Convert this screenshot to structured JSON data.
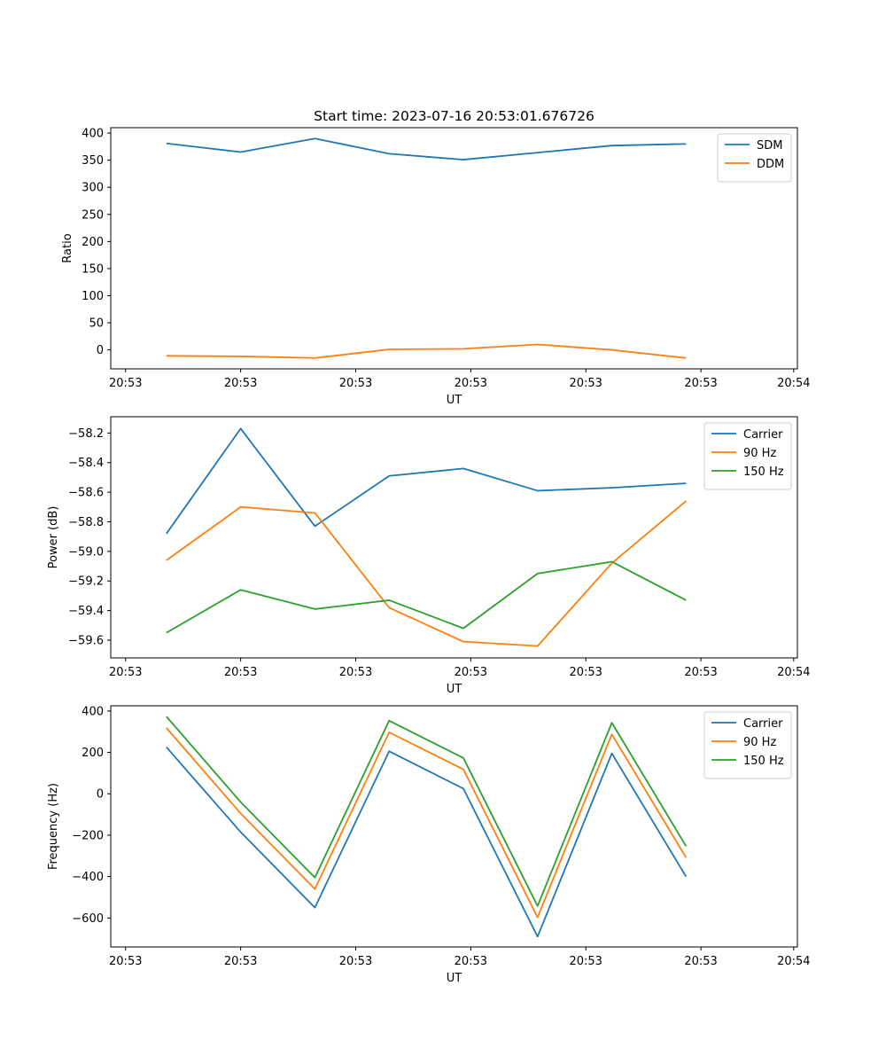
{
  "chart_data": [
    {
      "type": "line",
      "title": "Start time: 2023-07-16 20:53:01.676726",
      "xlabel": "UT",
      "ylabel": "Ratio",
      "ylim": [
        -35,
        410
      ],
      "xlim": [
        -0.75,
        8.5
      ],
      "x_ticks": [
        -0.55,
        1.0,
        2.55,
        4.1,
        5.65,
        7.2,
        8.45
      ],
      "x_tick_labels": [
        "20:53",
        "20:53",
        "20:53",
        "20:53",
        "20:53",
        "20:53",
        "20:54"
      ],
      "y_ticks": [
        0,
        50,
        100,
        150,
        200,
        250,
        300,
        350,
        400
      ],
      "y_tick_labels": [
        "0",
        "50",
        "100",
        "150",
        "200",
        "250",
        "300",
        "350",
        "400"
      ],
      "legend_position": "top-right",
      "x": [
        0,
        1,
        2,
        3,
        4,
        5,
        6,
        7
      ],
      "series": [
        {
          "name": "SDM",
          "color": "#1f77b4",
          "values": [
            381,
            365,
            390,
            362,
            351,
            364,
            377,
            380
          ]
        },
        {
          "name": "DDM",
          "color": "#ff7f0e",
          "values": [
            -11,
            -12,
            -15,
            1,
            2,
            10,
            0,
            -15
          ]
        }
      ]
    },
    {
      "type": "line",
      "xlabel": "UT",
      "ylabel": "Power (dB)",
      "ylim": [
        -59.72,
        -58.09
      ],
      "xlim": [
        -0.75,
        8.5
      ],
      "x_ticks": [
        -0.55,
        1.0,
        2.55,
        4.1,
        5.65,
        7.2,
        8.45
      ],
      "x_tick_labels": [
        "20:53",
        "20:53",
        "20:53",
        "20:53",
        "20:53",
        "20:53",
        "20:54"
      ],
      "y_ticks": [
        -58.2,
        -58.4,
        -58.6,
        -58.8,
        -59.0,
        -59.2,
        -59.4,
        -59.6
      ],
      "y_tick_labels": [
        "−58.2",
        "−58.4",
        "−58.6",
        "−58.8",
        "−59.0",
        "−59.2",
        "−59.4",
        "−59.6"
      ],
      "legend_position": "top-right",
      "x": [
        0,
        1,
        2,
        3,
        4,
        5,
        6,
        7
      ],
      "series": [
        {
          "name": "Carrier",
          "color": "#1f77b4",
          "values": [
            -58.88,
            -58.17,
            -58.83,
            -58.49,
            -58.44,
            -58.59,
            -58.57,
            -58.54
          ]
        },
        {
          "name": "90 Hz",
          "color": "#ff7f0e",
          "values": [
            -59.06,
            -58.7,
            -58.74,
            -59.38,
            -59.61,
            -59.64,
            -59.08,
            -58.66
          ]
        },
        {
          "name": "150 Hz",
          "color": "#2ca02c",
          "values": [
            -59.55,
            -59.26,
            -59.39,
            -59.33,
            -59.52,
            -59.15,
            -59.07,
            -59.33
          ]
        }
      ]
    },
    {
      "type": "line",
      "xlabel": "UT",
      "ylabel": "Frequency (Hz)",
      "ylim": [
        -740,
        425
      ],
      "xlim": [
        -0.75,
        8.5
      ],
      "x_ticks": [
        -0.55,
        1.0,
        2.55,
        4.1,
        5.65,
        7.2,
        8.45
      ],
      "x_tick_labels": [
        "20:53",
        "20:53",
        "20:53",
        "20:53",
        "20:53",
        "20:53",
        "20:54"
      ],
      "y_ticks": [
        400,
        200,
        0,
        -200,
        -400,
        -600
      ],
      "y_tick_labels": [
        "400",
        "200",
        "0",
        "−200",
        "−400",
        "−600"
      ],
      "legend_position": "top-right",
      "x": [
        0,
        1,
        2,
        3,
        4,
        5,
        6,
        7
      ],
      "series": [
        {
          "name": "Carrier",
          "color": "#1f77b4",
          "values": [
            225,
            -185,
            -550,
            205,
            25,
            -690,
            195,
            -400
          ]
        },
        {
          "name": "90 Hz",
          "color": "#ff7f0e",
          "values": [
            318,
            -95,
            -460,
            297,
            118,
            -597,
            287,
            -308
          ]
        },
        {
          "name": "150 Hz",
          "color": "#2ca02c",
          "values": [
            373,
            -40,
            -405,
            353,
            173,
            -542,
            343,
            -253
          ]
        }
      ]
    }
  ]
}
